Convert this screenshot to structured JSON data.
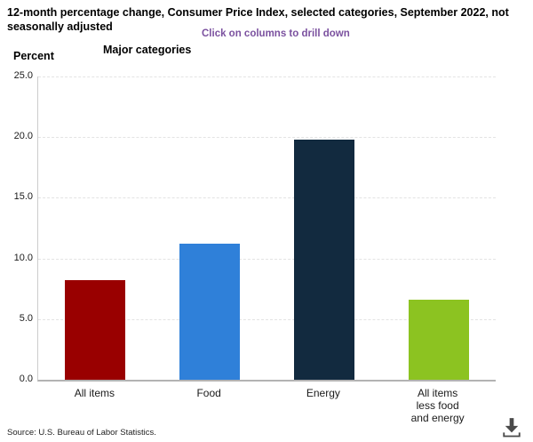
{
  "header": {
    "title": "12-month percentage change, Consumer Price Index, selected categories, September 2022, not\nseasonally adjusted",
    "drilldown_hint": "Click on columns to drill down",
    "group_label": "Major categories",
    "axis_unit_label": "Percent"
  },
  "footer": {
    "source": "Source: U.S. Bureau of Labor Statistics."
  },
  "icons": {
    "download": "download-icon"
  },
  "colors": {
    "hint_purple": "#7b519f",
    "axis_line": "#cccccc",
    "baseline": "#b3b3b3",
    "gridline": "#e3e3e3",
    "icon_gray": "#4a4a4a"
  },
  "chart_data": {
    "type": "bar",
    "title": "12-month percentage change, Consumer Price Index, selected categories, September 2022, not seasonally adjusted",
    "subtitle": "Major categories",
    "categories": [
      "All items",
      "Food",
      "Energy",
      "All items\nless food\nand energy"
    ],
    "values": [
      8.2,
      11.2,
      19.8,
      6.6
    ],
    "bar_colors": [
      "#990000",
      "#2f80d9",
      "#122a3f",
      "#8cc321"
    ],
    "xlabel": "",
    "ylabel": "Percent",
    "ylim": [
      0,
      25
    ],
    "yticks": [
      0.0,
      5.0,
      10.0,
      15.0,
      20.0,
      25.0
    ],
    "grid": "horizontal-dashed",
    "legend_position": "none"
  }
}
